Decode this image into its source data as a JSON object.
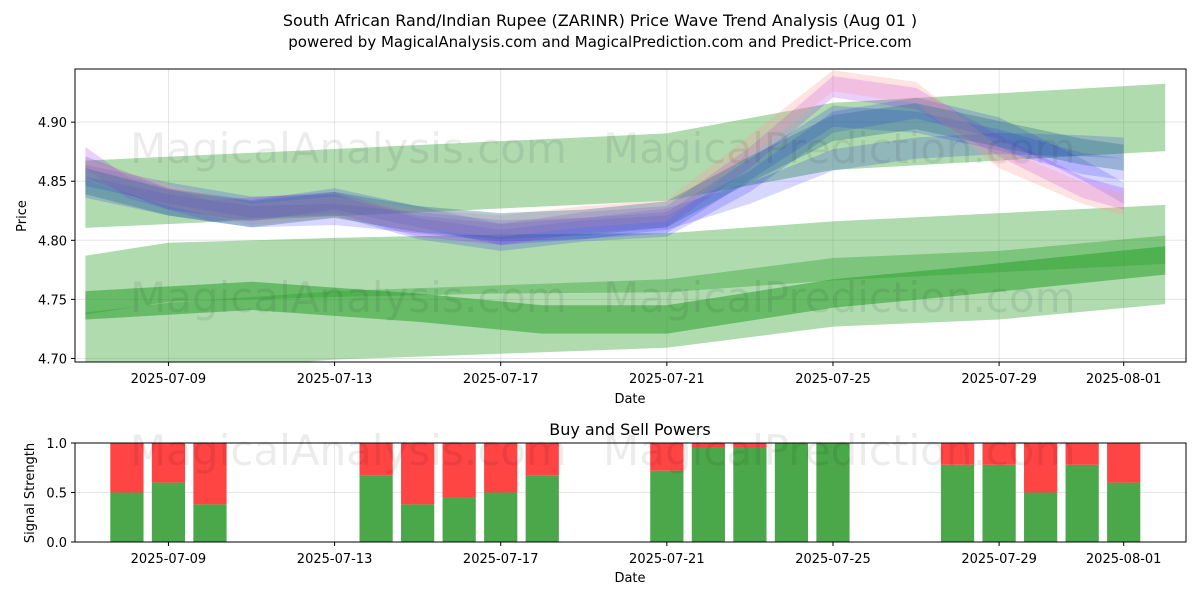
{
  "header": {
    "title": "South African Rand/Indian Rupee (ZARINR) Price Wave Trend Analysis (Aug 01 )",
    "subtitle": "powered by MagicalAnalysis.com and MagicalPrediction.com and Predict-Price.com"
  },
  "watermarks": [
    "MagicalAnalysis.com",
    "MagicalPrediction.com"
  ],
  "colors": {
    "band_green": "#2ca02c",
    "wave_blue": "#0000ff",
    "wave_purple": "#a020f0",
    "wave_pink": "#ff9999",
    "buy_green": "#4aa84a",
    "sell_red": "#ff4444"
  },
  "chart_data": [
    {
      "type": "area",
      "name": "price-wave-chart",
      "xlabel": "Date",
      "ylabel": "Price",
      "x_ticks": [
        "2025-07-09",
        "2025-07-13",
        "2025-07-17",
        "2025-07-21",
        "2025-07-25",
        "2025-07-29",
        "2025-08-01"
      ],
      "y_ticks": [
        "4.70",
        "4.75",
        "4.80",
        "4.85",
        "4.90"
      ],
      "ylim": [
        4.697,
        4.945
      ],
      "xlim": [
        "2025-07-06T18:00",
        "2025-08-02T12:00"
      ],
      "grid": true,
      "bands": [
        {
          "x": [
            "2025-07-07",
            "2025-07-21",
            "2025-07-25",
            "2025-08-02"
          ],
          "center": [
            4.839,
            4.862,
            4.888,
            4.904
          ],
          "width": 0.057,
          "opacity": 0.38
        },
        {
          "x": [
            "2025-07-07",
            "2025-07-09",
            "2025-07-13",
            "2025-07-17",
            "2025-07-21",
            "2025-07-25",
            "2025-07-29",
            "2025-08-02"
          ],
          "center": [
            4.762,
            4.773,
            4.777,
            4.78,
            4.781,
            4.791,
            4.798,
            4.805
          ],
          "width": 0.05,
          "opacity": 0.38
        },
        {
          "x": [
            "2025-07-07",
            "2025-07-09",
            "2025-07-13",
            "2025-07-17",
            "2025-07-21",
            "2025-07-25",
            "2025-07-29",
            "2025-08-02"
          ],
          "center": [
            4.71,
            4.718,
            4.728,
            4.733,
            4.738,
            4.756,
            4.762,
            4.775
          ],
          "width": 0.058,
          "opacity": 0.38
        },
        {
          "x": [
            "2025-07-07",
            "2025-07-11",
            "2025-07-15",
            "2025-07-18",
            "2025-07-21",
            "2025-07-25",
            "2025-07-28",
            "2025-08-02"
          ],
          "center": [
            4.745,
            4.753,
            4.743,
            4.733,
            4.733,
            4.755,
            4.765,
            4.783
          ],
          "width": 0.024,
          "opacity": 0.55
        }
      ],
      "waves": [
        {
          "color": "blue",
          "x": [
            "2025-07-07",
            "2025-07-09",
            "2025-07-11",
            "2025-07-13",
            "2025-07-15",
            "2025-07-17",
            "2025-07-19",
            "2025-07-21",
            "2025-07-23",
            "2025-07-25",
            "2025-07-27",
            "2025-07-29",
            "2025-07-31",
            "2025-08-01"
          ],
          "y": [
            4.845,
            4.83,
            4.82,
            4.822,
            4.815,
            4.808,
            4.81,
            4.818,
            4.84,
            4.868,
            4.878,
            4.882,
            4.88,
            4.878
          ],
          "width": 0.018
        },
        {
          "color": "blue",
          "x": [
            "2025-07-07",
            "2025-07-09",
            "2025-07-11",
            "2025-07-13",
            "2025-07-15",
            "2025-07-17",
            "2025-07-19",
            "2025-07-21",
            "2025-07-23",
            "2025-07-25",
            "2025-07-27",
            "2025-07-29",
            "2025-07-31",
            "2025-08-01"
          ],
          "y": [
            4.862,
            4.835,
            4.825,
            4.835,
            4.82,
            4.805,
            4.81,
            4.815,
            4.86,
            4.905,
            4.9,
            4.885,
            4.865,
            4.86
          ],
          "width": 0.018
        },
        {
          "color": "blue",
          "x": [
            "2025-07-07",
            "2025-07-09",
            "2025-07-11",
            "2025-07-13",
            "2025-07-15",
            "2025-07-17",
            "2025-07-19",
            "2025-07-21",
            "2025-07-23",
            "2025-07-25",
            "2025-07-27",
            "2025-07-29",
            "2025-07-31",
            "2025-08-01"
          ],
          "y": [
            4.855,
            4.84,
            4.828,
            4.83,
            4.81,
            4.8,
            4.808,
            4.812,
            4.85,
            4.9,
            4.912,
            4.895,
            4.86,
            4.84
          ],
          "width": 0.018
        },
        {
          "color": "purple",
          "x": [
            "2025-07-07",
            "2025-07-08",
            "2025-07-10",
            "2025-07-13",
            "2025-07-15",
            "2025-07-17",
            "2025-07-19",
            "2025-07-21",
            "2025-07-23",
            "2025-07-25",
            "2025-07-27",
            "2025-07-29",
            "2025-07-31",
            "2025-08-01"
          ],
          "y": [
            4.87,
            4.845,
            4.825,
            4.832,
            4.812,
            4.805,
            4.815,
            4.82,
            4.87,
            4.93,
            4.92,
            4.88,
            4.845,
            4.835
          ],
          "width": 0.018
        },
        {
          "color": "pink",
          "x": [
            "2025-07-07",
            "2025-07-09",
            "2025-07-11",
            "2025-07-13",
            "2025-07-15",
            "2025-07-17",
            "2025-07-19",
            "2025-07-21",
            "2025-07-23",
            "2025-07-25",
            "2025-07-27",
            "2025-07-29",
            "2025-07-31",
            "2025-08-01"
          ],
          "y": [
            4.86,
            4.838,
            4.822,
            4.828,
            4.818,
            4.812,
            4.82,
            4.825,
            4.88,
            4.935,
            4.925,
            4.87,
            4.84,
            4.83
          ],
          "width": 0.018
        },
        {
          "color": "teal",
          "x": [
            "2025-07-07",
            "2025-07-09",
            "2025-07-11",
            "2025-07-13",
            "2025-07-15",
            "2025-07-17",
            "2025-07-19",
            "2025-07-21",
            "2025-07-23",
            "2025-07-25",
            "2025-07-27",
            "2025-07-29",
            "2025-07-31",
            "2025-08-01"
          ],
          "y": [
            4.85,
            4.832,
            4.822,
            4.83,
            4.818,
            4.812,
            4.815,
            4.822,
            4.86,
            4.895,
            4.905,
            4.89,
            4.875,
            4.87
          ],
          "width": 0.022
        }
      ]
    },
    {
      "type": "bar",
      "name": "buy-sell-powers-chart",
      "title": "Buy and Sell Powers",
      "xlabel": "Date",
      "ylabel": "Signal Strength",
      "x_ticks": [
        "2025-07-09",
        "2025-07-13",
        "2025-07-17",
        "2025-07-21",
        "2025-07-25",
        "2025-07-29",
        "2025-08-01"
      ],
      "y_ticks": [
        "0.0",
        "0.5",
        "1.0"
      ],
      "ylim": [
        0,
        1
      ],
      "xlim": [
        "2025-07-06T18:00",
        "2025-08-02T12:00"
      ],
      "categories": [
        "2025-07-08",
        "2025-07-09",
        "2025-07-10",
        "2025-07-14",
        "2025-07-15",
        "2025-07-16",
        "2025-07-17",
        "2025-07-18",
        "2025-07-21",
        "2025-07-22",
        "2025-07-23",
        "2025-07-24",
        "2025-07-25",
        "2025-07-28",
        "2025-07-29",
        "2025-07-30",
        "2025-07-31",
        "2025-08-01"
      ],
      "series": [
        {
          "name": "Buy",
          "values": [
            0.5,
            0.6,
            0.38,
            0.67,
            0.38,
            0.45,
            0.5,
            0.67,
            0.72,
            0.95,
            0.95,
            1.0,
            1.0,
            0.78,
            0.78,
            0.5,
            0.78,
            0.6
          ]
        },
        {
          "name": "Sell",
          "values": [
            0.5,
            0.4,
            0.62,
            0.33,
            0.62,
            0.55,
            0.5,
            0.33,
            0.28,
            0.05,
            0.05,
            0.0,
            0.0,
            0.22,
            0.22,
            0.5,
            0.22,
            0.4
          ]
        }
      ]
    }
  ]
}
